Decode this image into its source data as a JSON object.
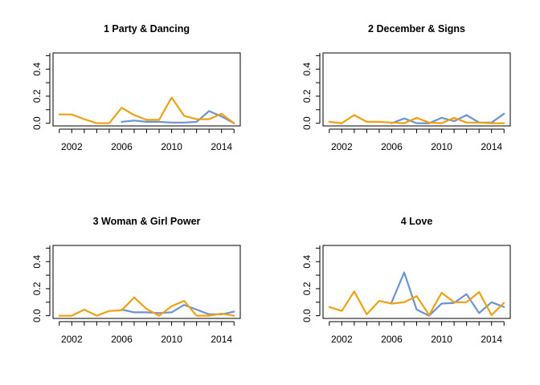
{
  "colors": {
    "series_blue": "#6A94D4",
    "series_orange": "#F0A010",
    "axis": "#000000"
  },
  "chart_data": [
    {
      "type": "line",
      "title": "1 Party & Dancing",
      "xlim": [
        2000.5,
        2015.5
      ],
      "ylim": [
        -0.02,
        0.52
      ],
      "x_ticks": [
        2002,
        2006,
        2010,
        2014
      ],
      "y_ticks": [
        0.0,
        0.2,
        0.4
      ],
      "y_tick_labels": [
        "0.0",
        "0.2",
        "0.4"
      ],
      "series": [
        {
          "color": "#6A94D4",
          "x": [
            2006,
            2007,
            2008,
            2009,
            2010,
            2011,
            2012,
            2013,
            2014,
            2015
          ],
          "y": [
            0.01,
            0.02,
            0.01,
            0.01,
            0.005,
            0.005,
            0.01,
            0.09,
            0.05,
            0.0
          ]
        },
        {
          "color": "#F0A010",
          "x": [
            2001,
            2002,
            2003,
            2004,
            2005,
            2006,
            2007,
            2008,
            2009,
            2010,
            2011,
            2012,
            2013,
            2014,
            2015
          ],
          "y": [
            0.065,
            0.065,
            0.03,
            0.0,
            0.0,
            0.115,
            0.06,
            0.025,
            0.025,
            0.19,
            0.055,
            0.03,
            0.03,
            0.07,
            0.0
          ]
        }
      ]
    },
    {
      "type": "line",
      "title": "2 December & Signs",
      "xlim": [
        2000.5,
        2015.5
      ],
      "ylim": [
        -0.02,
        0.52
      ],
      "x_ticks": [
        2002,
        2006,
        2010,
        2014
      ],
      "y_ticks": [
        0.0,
        0.2,
        0.4
      ],
      "y_tick_labels": [
        "0.0",
        "0.2",
        "0.4"
      ],
      "series": [
        {
          "color": "#6A94D4",
          "x": [
            2006,
            2007,
            2008,
            2009,
            2010,
            2011,
            2012,
            2013,
            2014,
            2015
          ],
          "y": [
            0.0,
            0.035,
            0.0,
            0.0,
            0.04,
            0.015,
            0.06,
            0.005,
            0.005,
            0.07
          ]
        },
        {
          "color": "#F0A010",
          "x": [
            2001,
            2002,
            2003,
            2004,
            2005,
            2006,
            2007,
            2008,
            2009,
            2010,
            2011,
            2012,
            2013,
            2014,
            2015
          ],
          "y": [
            0.01,
            0.0,
            0.06,
            0.01,
            0.01,
            0.005,
            0.0,
            0.04,
            0.005,
            0.0,
            0.04,
            0.005,
            0.005,
            0.0,
            0.0
          ]
        }
      ]
    },
    {
      "type": "line",
      "title": "3 Woman & Girl Power",
      "xlim": [
        2000.5,
        2015.5
      ],
      "ylim": [
        -0.02,
        0.52
      ],
      "x_ticks": [
        2002,
        2006,
        2010,
        2014
      ],
      "y_ticks": [
        0.0,
        0.2,
        0.4
      ],
      "y_tick_labels": [
        "0.0",
        "0.2",
        "0.4"
      ],
      "series": [
        {
          "color": "#6A94D4",
          "x": [
            2006,
            2007,
            2008,
            2009,
            2010,
            2011,
            2012,
            2013,
            2014,
            2015
          ],
          "y": [
            0.045,
            0.025,
            0.025,
            0.02,
            0.025,
            0.08,
            0.045,
            0.01,
            0.01,
            0.03
          ]
        },
        {
          "color": "#F0A010",
          "x": [
            2001,
            2002,
            2003,
            2004,
            2005,
            2006,
            2007,
            2008,
            2009,
            2010,
            2011,
            2012,
            2013,
            2014,
            2015
          ],
          "y": [
            0.0,
            0.0,
            0.045,
            0.0,
            0.035,
            0.04,
            0.135,
            0.05,
            0.0,
            0.07,
            0.11,
            0.0,
            0.0,
            0.015,
            0.0
          ]
        }
      ]
    },
    {
      "type": "line",
      "title": "4 Love",
      "xlim": [
        2000.5,
        2015.5
      ],
      "ylim": [
        -0.02,
        0.52
      ],
      "x_ticks": [
        2002,
        2006,
        2010,
        2014
      ],
      "y_ticks": [
        0.0,
        0.2,
        0.4
      ],
      "y_tick_labels": [
        "0.0",
        "0.2",
        "0.4"
      ],
      "series": [
        {
          "color": "#6A94D4",
          "x": [
            2006,
            2007,
            2008,
            2009,
            2010,
            2011,
            2012,
            2013,
            2014,
            2015
          ],
          "y": [
            0.1,
            0.32,
            0.045,
            0.0,
            0.09,
            0.095,
            0.16,
            0.02,
            0.1,
            0.065
          ]
        },
        {
          "color": "#F0A010",
          "x": [
            2001,
            2002,
            2003,
            2004,
            2005,
            2006,
            2007,
            2008,
            2009,
            2010,
            2011,
            2012,
            2013,
            2014,
            2015
          ],
          "y": [
            0.065,
            0.035,
            0.18,
            0.01,
            0.11,
            0.09,
            0.1,
            0.145,
            0.005,
            0.17,
            0.1,
            0.1,
            0.175,
            0.005,
            0.095
          ]
        }
      ]
    }
  ]
}
